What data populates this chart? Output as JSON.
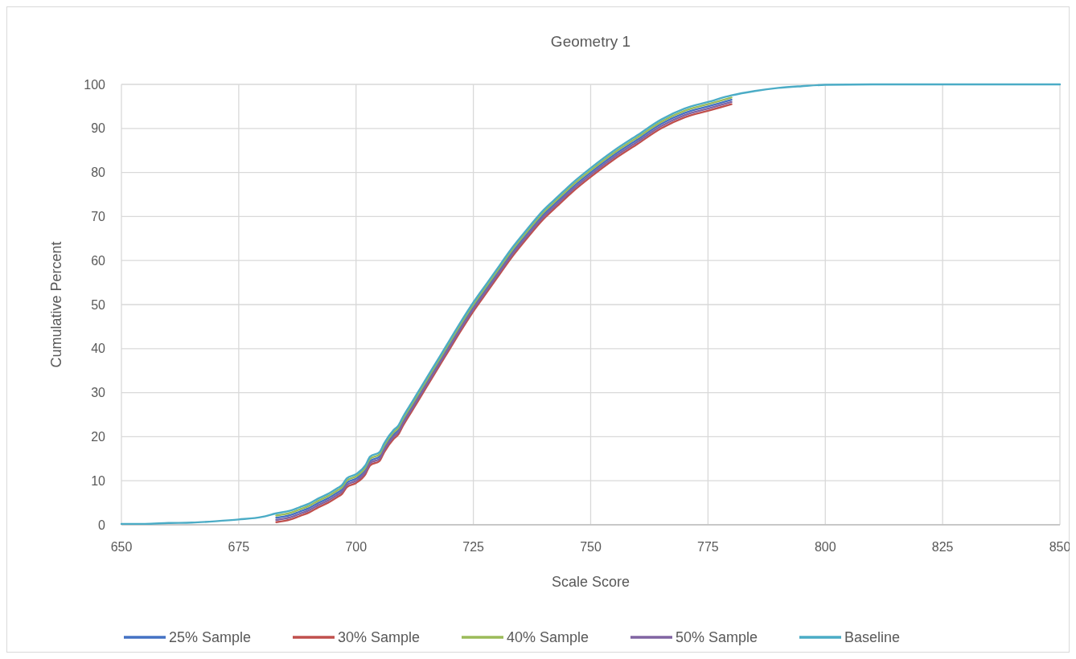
{
  "chart_data": {
    "type": "line",
    "title": "Geometry 1",
    "xlabel": "Scale Score",
    "ylabel": "Cumulative Percent",
    "x": [
      650,
      655,
      660,
      665,
      670,
      675,
      680,
      683,
      686,
      688,
      690,
      692,
      694,
      696,
      697,
      698,
      700,
      702,
      703,
      705,
      706,
      708,
      709,
      710,
      712,
      714,
      716,
      718,
      720,
      722,
      725,
      728,
      730,
      733,
      736,
      740,
      743,
      746,
      750,
      755,
      760,
      765,
      770,
      775,
      780,
      785,
      790,
      795,
      800,
      810,
      850
    ],
    "xlim": [
      650,
      850
    ],
    "xticks": [
      650,
      675,
      700,
      725,
      750,
      775,
      800,
      825,
      850
    ],
    "ylim": [
      0,
      100
    ],
    "yticks": [
      0,
      10,
      20,
      30,
      40,
      50,
      60,
      70,
      80,
      90,
      100
    ],
    "grid": true,
    "legend": "bottom",
    "marker": "none",
    "line_style": "solid",
    "series": [
      {
        "name": "25% Sample",
        "color": "#4472c4",
        "values": [
          null,
          null,
          null,
          null,
          null,
          null,
          null,
          1.6,
          2.2,
          3.0,
          3.8,
          5.0,
          6.0,
          7.3,
          8.0,
          9.5,
          10.5,
          12.5,
          14.5,
          15.5,
          17.5,
          20.5,
          21.5,
          23.5,
          27,
          30.5,
          34,
          37.5,
          41,
          44.5,
          49.5,
          54,
          57,
          61.5,
          65.5,
          70.5,
          73.5,
          76.5,
          80,
          84,
          87.5,
          91,
          93.5,
          95,
          96.5,
          null,
          null,
          null,
          null,
          null,
          null
        ]
      },
      {
        "name": "30% Sample",
        "color": "#c0504d",
        "values": [
          null,
          null,
          null,
          null,
          null,
          null,
          null,
          0.6,
          1.2,
          2.0,
          2.8,
          4.0,
          5.0,
          6.3,
          7.0,
          8.5,
          9.5,
          11.5,
          13.5,
          14.5,
          16.5,
          19.5,
          20.5,
          22.5,
          26,
          29.5,
          33,
          36.5,
          40,
          43.5,
          48.5,
          53,
          56,
          60.5,
          64.5,
          69.5,
          72.5,
          75.5,
          79,
          83,
          86.5,
          90,
          92.5,
          94,
          95.5,
          null,
          null,
          null,
          null,
          null,
          null
        ]
      },
      {
        "name": "40% Sample",
        "color": "#9bbb59",
        "values": [
          null,
          null,
          null,
          null,
          null,
          null,
          null,
          2.1,
          2.7,
          3.5,
          4.3,
          5.5,
          6.5,
          7.8,
          8.5,
          10,
          11,
          13,
          15,
          16,
          18,
          21,
          22,
          24,
          27.5,
          31,
          34.5,
          38,
          41.5,
          45,
          50,
          54.5,
          57.5,
          62,
          66,
          71,
          74,
          77,
          80.5,
          84.5,
          88,
          91.5,
          94,
          95.5,
          97,
          null,
          null,
          null,
          null,
          null,
          null
        ]
      },
      {
        "name": "50% Sample",
        "color": "#8064a2",
        "values": [
          null,
          null,
          null,
          null,
          null,
          null,
          null,
          1.1,
          1.7,
          2.5,
          3.3,
          4.5,
          5.5,
          6.8,
          7.5,
          9,
          10,
          12,
          14,
          15,
          17,
          20,
          21,
          23,
          26.5,
          30,
          33.5,
          37,
          40.5,
          44,
          49,
          53.5,
          56.5,
          61,
          65,
          70,
          73,
          76,
          79.5,
          83.5,
          87,
          90.5,
          93,
          94.5,
          96,
          null,
          null,
          null,
          null,
          null,
          null
        ]
      },
      {
        "name": "Baseline",
        "color": "#4bacc6",
        "values": [
          0.2,
          0.2,
          0.4,
          0.5,
          0.8,
          1.2,
          1.8,
          2.6,
          3.2,
          4.0,
          4.8,
          6.0,
          7.0,
          8.3,
          9.0,
          10.5,
          11.5,
          13.5,
          15.5,
          16.5,
          18.5,
          21.5,
          22.5,
          24.5,
          28,
          31.5,
          35,
          38.5,
          42,
          45.5,
          50.5,
          55,
          58,
          62.5,
          66.5,
          71.5,
          74.5,
          77.5,
          81,
          85,
          88.5,
          92,
          94.5,
          96,
          97.5,
          98.5,
          99.2,
          99.6,
          99.9,
          100,
          100
        ]
      }
    ]
  }
}
